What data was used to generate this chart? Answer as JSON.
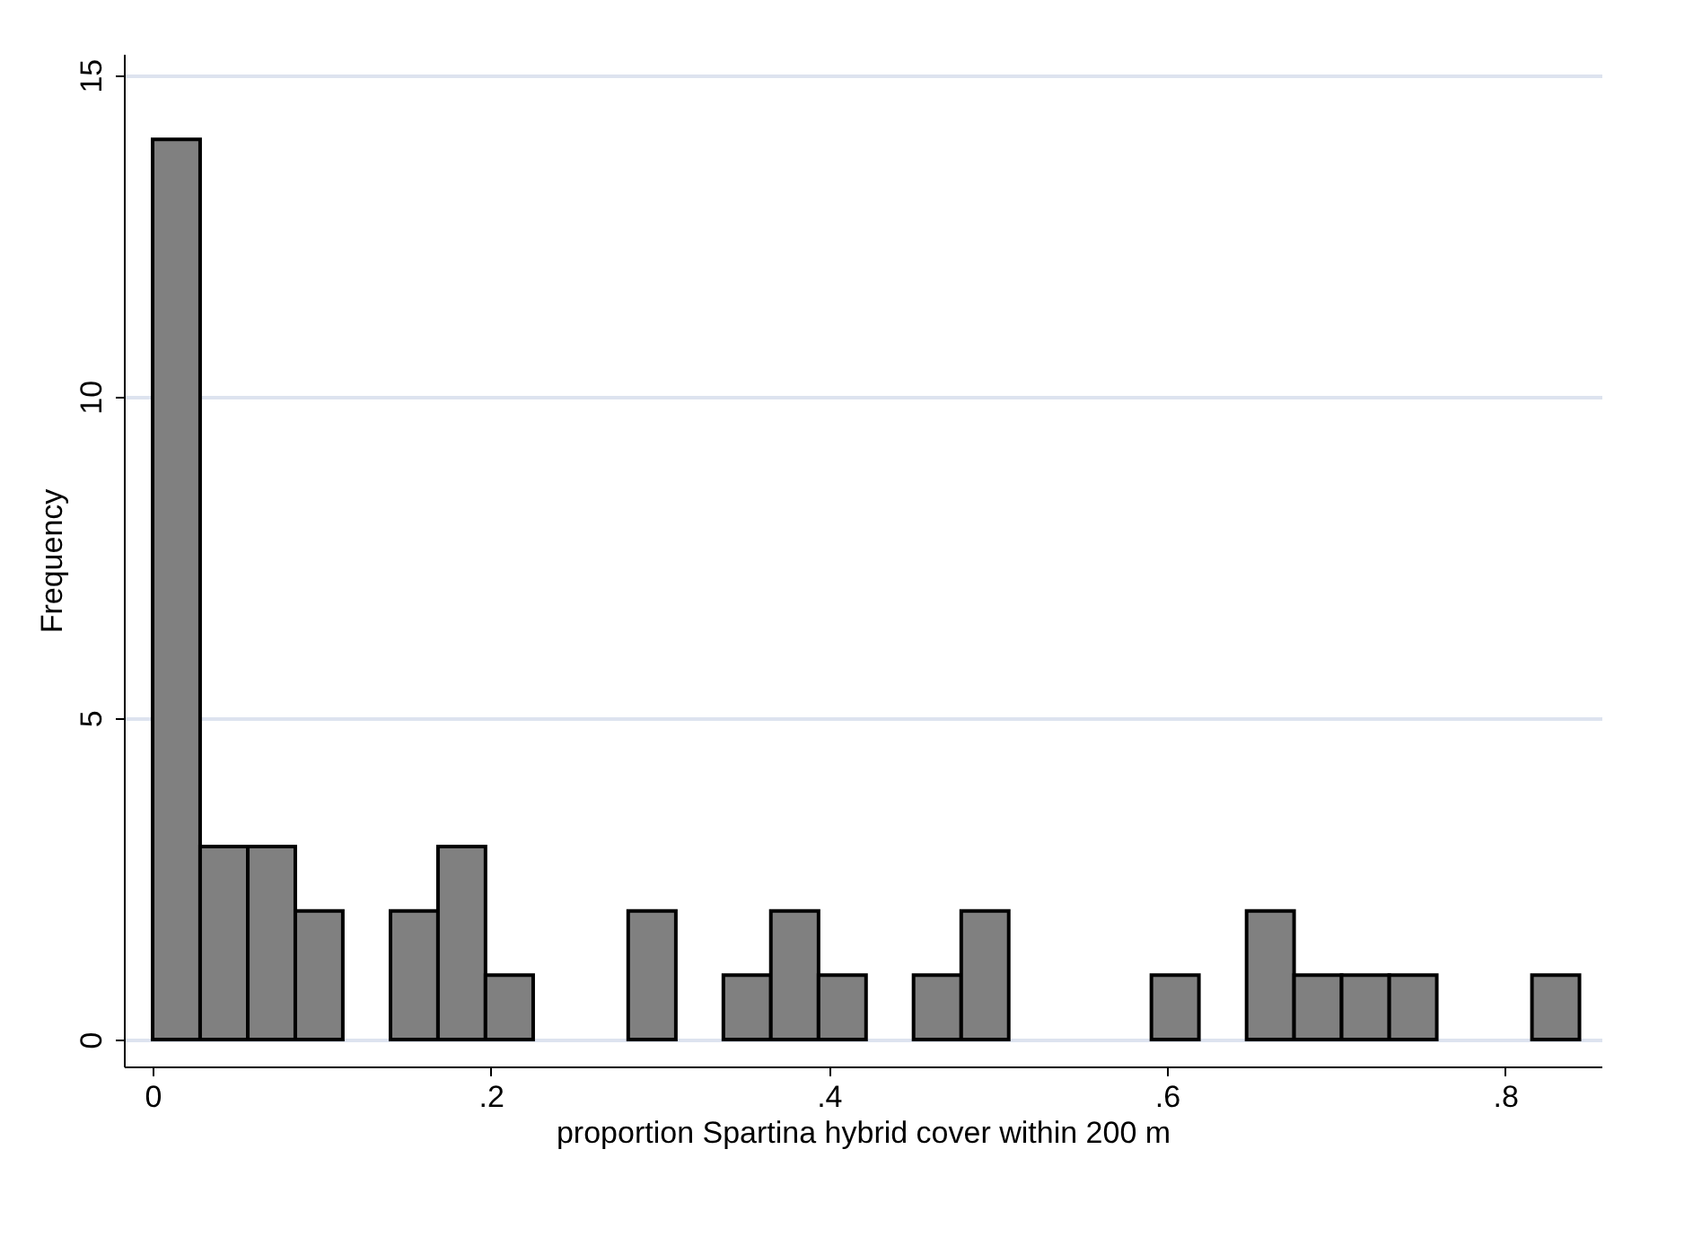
{
  "chart_data": {
    "type": "histogram",
    "xlabel": "proportion Spartina hybrid cover within 200 m",
    "ylabel": "Frequency",
    "bins": [
      0,
      0.0281,
      0.0563,
      0.0844,
      0.1125,
      0.1407,
      0.1688,
      0.1969,
      0.2251,
      0.2532,
      0.2813,
      0.3095,
      0.3376,
      0.3657,
      0.3939,
      0.422,
      0.4501,
      0.4783,
      0.5064,
      0.5345,
      0.5627,
      0.5908,
      0.6189,
      0.6471,
      0.6752,
      0.7033,
      0.7315,
      0.7596,
      0.7877,
      0.8159,
      0.844
    ],
    "values": [
      14,
      3,
      3,
      2,
      0,
      2,
      3,
      1,
      0,
      0,
      2,
      0,
      1,
      2,
      1,
      0,
      1,
      2,
      0,
      0,
      0,
      1,
      0,
      2,
      1,
      1,
      1,
      0,
      0,
      1
    ],
    "color": "#808080",
    "xlim": [
      -0.017,
      0.857
    ],
    "ylim": [
      -0.42,
      15.33
    ],
    "xticks": [
      0,
      {
        "value": 0.2,
        "label": ".2"
      },
      {
        "value": 0.4,
        "label": ".4"
      },
      {
        "value": 0.6,
        "label": ".6"
      },
      {
        "value": 0.8,
        "label": ".8"
      }
    ],
    "yticks": [
      0,
      5,
      10,
      15
    ],
    "grid": "y"
  }
}
